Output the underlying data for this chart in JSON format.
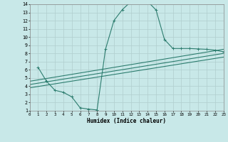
{
  "xlabel": "Humidex (Indice chaleur)",
  "bg_color": "#c8e8e8",
  "grid_color": "#b0cece",
  "line_color": "#2d7d6f",
  "xlim": [
    0,
    23
  ],
  "ylim": [
    1,
    14
  ],
  "xtick_labels": [
    "0",
    "1",
    "2",
    "3",
    "4",
    "5",
    "6",
    "7",
    "8",
    "9",
    "10",
    "11",
    "12",
    "13",
    "14",
    "15",
    "16",
    "17",
    "18",
    "19",
    "20",
    "21",
    "22",
    "23"
  ],
  "ytick_labels": [
    "1",
    "2",
    "3",
    "4",
    "5",
    "6",
    "7",
    "8",
    "9",
    "10",
    "11",
    "12",
    "13",
    "14"
  ],
  "line1_x": [
    1,
    2,
    3,
    4,
    5,
    6,
    7,
    8,
    9,
    10,
    11,
    12,
    13,
    14,
    15,
    16,
    17,
    18,
    19,
    20,
    21,
    22,
    23
  ],
  "line1_y": [
    6.3,
    4.6,
    3.5,
    3.25,
    2.7,
    1.35,
    1.2,
    1.1,
    8.5,
    12.0,
    13.35,
    14.3,
    14.5,
    14.35,
    13.3,
    9.7,
    8.6,
    8.6,
    8.6,
    8.55,
    8.5,
    8.4,
    8.2
  ],
  "line2_x": [
    0,
    23
  ],
  "line2_y": [
    4.6,
    8.5
  ],
  "line3_x": [
    0,
    23
  ],
  "line3_y": [
    4.2,
    8.0
  ],
  "line4_x": [
    0,
    23
  ],
  "line4_y": [
    3.8,
    7.55
  ]
}
